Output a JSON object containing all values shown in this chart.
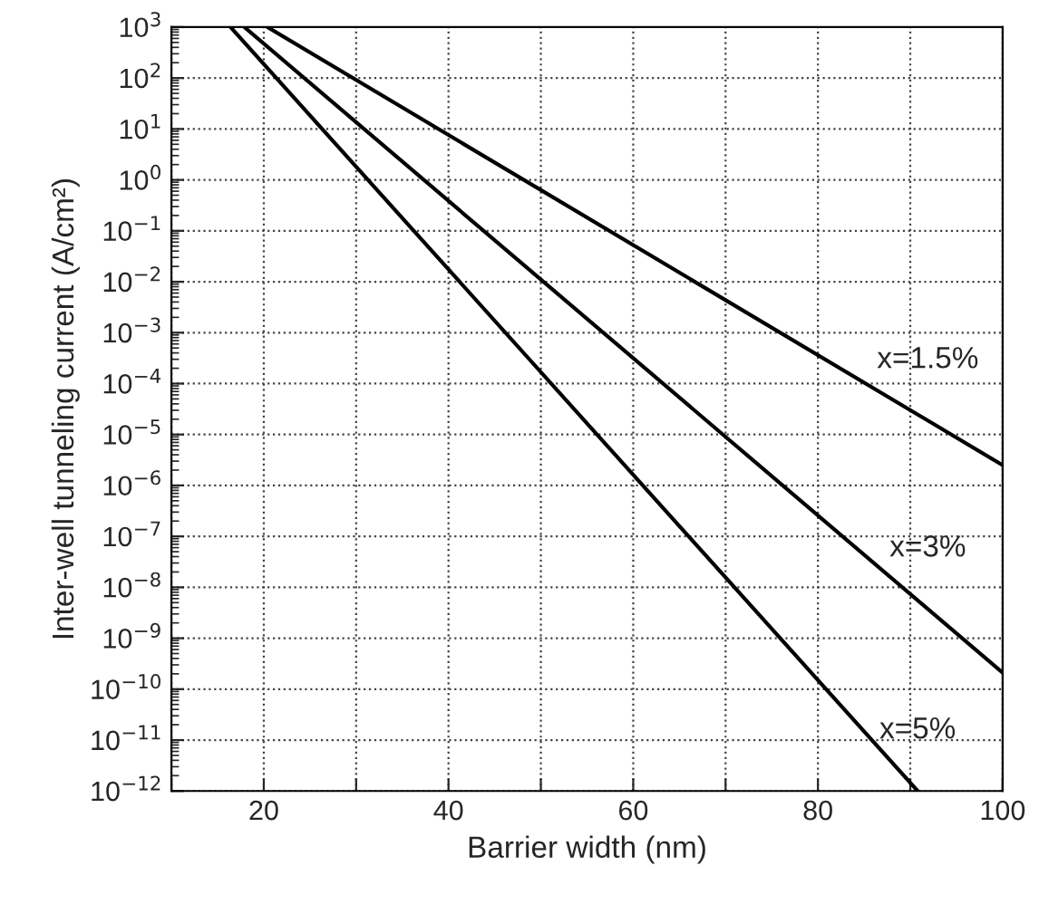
{
  "chart_data": {
    "type": "line",
    "xlabel": "Barrier width (nm)",
    "ylabel": "Inter-well tunneling current (A/cm²)",
    "series": [
      {
        "name": "x=1.5%",
        "color": "#000000",
        "x": [
          20.4,
          100
        ],
        "values": [
          1000,
          2.5e-06
        ]
      },
      {
        "name": "x=3%",
        "color": "#000000",
        "x": [
          17.9,
          100
        ],
        "values": [
          1000,
          2.1e-10
        ]
      },
      {
        "name": "x=5%",
        "color": "#000000",
        "x": [
          16.4,
          90.8
        ],
        "values": [
          1000,
          1e-12
        ]
      }
    ],
    "log": "y",
    "xlim": [
      10,
      100
    ],
    "ylim": [
      1e-12,
      1000
    ],
    "xticks": [
      {
        "value": 10,
        "label": null
      },
      20,
      {
        "value": 30,
        "label": null
      },
      40,
      {
        "value": 50,
        "label": null
      },
      60,
      {
        "value": 70,
        "label": null
      },
      80,
      {
        "value": 90,
        "label": null
      },
      100
    ],
    "yticks": [
      {
        "value": 1e-12,
        "label": "10$^{−12}$"
      },
      {
        "value": 1e-11,
        "label": "10$^{−11}$"
      },
      {
        "value": 1e-10,
        "label": "10$^{−10}$"
      },
      {
        "value": 1e-09,
        "label": "10$^{−9}$"
      },
      {
        "value": 1e-08,
        "label": "10$^{−8}$"
      },
      {
        "value": 1e-07,
        "label": "10$^{−7}$"
      },
      {
        "value": 1e-06,
        "label": "10$^{−6}$"
      },
      {
        "value": 1e-05,
        "label": "10$^{−5}$"
      },
      {
        "value": 0.0001,
        "label": "10$^{−4}$"
      },
      {
        "value": 0.001,
        "label": "10$^{−3}$"
      },
      {
        "value": 0.01,
        "label": "10$^{−2}$"
      },
      {
        "value": 0.1,
        "label": "10$^{−1}$"
      },
      {
        "value": 1,
        "label": "10$^{0}$"
      },
      {
        "value": 10,
        "label": "10$^{1}$"
      },
      {
        "value": 100,
        "label": "10$^{2}$"
      },
      {
        "value": 1000,
        "label": "10$^{3}$"
      }
    ],
    "grid": true,
    "marker": "none",
    "line_style": "solid",
    "legend": false
  }
}
